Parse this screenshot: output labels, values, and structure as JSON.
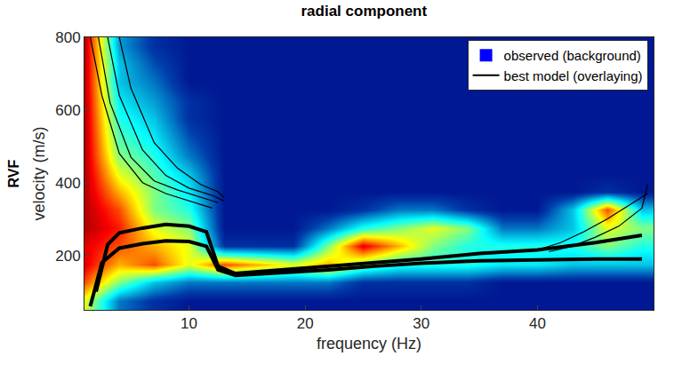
{
  "chart_data": {
    "type": "heatmap",
    "title": "radial component",
    "side_label": "RVF",
    "x_label": "frequency (Hz)",
    "y_label": "velocity (m/s)",
    "xlim": [
      1,
      50
    ],
    "ylim": [
      50,
      800
    ],
    "xticks": [
      10,
      20,
      30,
      40
    ],
    "yticks": [
      200,
      400,
      600,
      800
    ],
    "legend": "top right",
    "heatmap": {
      "name": "observed (background)",
      "color": "#0000ff",
      "x": [
        1,
        4,
        7,
        10,
        13,
        16,
        19,
        22,
        25,
        28,
        31,
        34,
        37,
        40,
        43,
        46,
        49
      ],
      "y": [
        75,
        125,
        175,
        225,
        275,
        325,
        375,
        425,
        475,
        525,
        575,
        625,
        675,
        725,
        775
      ],
      "z": [
        [
          0.6,
          0.2,
          0.1,
          0.05,
          0.05,
          0.05,
          0.05,
          0.05,
          0.05,
          0.05,
          0.05,
          0.05,
          0.05,
          0.05,
          0.05,
          0.05,
          0.05
        ],
        [
          0.8,
          0.5,
          0.3,
          0.2,
          0.2,
          0.2,
          0.2,
          0.2,
          0.1,
          0.1,
          0.1,
          0.1,
          0.05,
          0.05,
          0.05,
          0.05,
          0.05
        ],
        [
          0.9,
          0.7,
          0.8,
          0.6,
          0.8,
          0.7,
          0.6,
          0.7,
          0.5,
          0.4,
          0.4,
          0.4,
          0.35,
          0.35,
          0.3,
          0.3,
          0.3
        ],
        [
          0.9,
          0.8,
          0.7,
          0.6,
          0.1,
          0.1,
          0.1,
          0.5,
          0.9,
          0.7,
          0.5,
          0.4,
          0.4,
          0.4,
          0.4,
          0.5,
          0.4
        ],
        [
          0.95,
          0.85,
          0.6,
          0.5,
          0.05,
          0.05,
          0.05,
          0.2,
          0.4,
          0.5,
          0.6,
          0.5,
          0.2,
          0.2,
          0.3,
          0.6,
          0.5
        ],
        [
          0.95,
          0.8,
          0.5,
          0.4,
          0.05,
          0.05,
          0.05,
          0.05,
          0.1,
          0.2,
          0.2,
          0.1,
          0.05,
          0.05,
          0.3,
          0.8,
          0.3
        ],
        [
          0.95,
          0.7,
          0.5,
          0.35,
          0.05,
          0.05,
          0.05,
          0.05,
          0.05,
          0.05,
          0.05,
          0.05,
          0.05,
          0.05,
          0.05,
          0.1,
          0.05
        ],
        [
          0.95,
          0.6,
          0.45,
          0.3,
          0.05,
          0.05,
          0.05,
          0.05,
          0.05,
          0.05,
          0.05,
          0.05,
          0.05,
          0.05,
          0.05,
          0.05,
          0.05
        ],
        [
          0.95,
          0.5,
          0.4,
          0.2,
          0.05,
          0.05,
          0.05,
          0.05,
          0.05,
          0.05,
          0.05,
          0.05,
          0.05,
          0.05,
          0.05,
          0.05,
          0.05
        ],
        [
          0.95,
          0.45,
          0.35,
          0.15,
          0.05,
          0.05,
          0.05,
          0.05,
          0.05,
          0.05,
          0.05,
          0.05,
          0.05,
          0.05,
          0.05,
          0.05,
          0.05
        ],
        [
          0.95,
          0.4,
          0.3,
          0.1,
          0.05,
          0.05,
          0.05,
          0.05,
          0.05,
          0.05,
          0.05,
          0.05,
          0.05,
          0.05,
          0.05,
          0.05,
          0.05
        ],
        [
          0.95,
          0.35,
          0.25,
          0.1,
          0.05,
          0.05,
          0.05,
          0.05,
          0.05,
          0.05,
          0.05,
          0.05,
          0.05,
          0.05,
          0.05,
          0.05,
          0.05
        ],
        [
          0.95,
          0.3,
          0.2,
          0.05,
          0.05,
          0.05,
          0.05,
          0.05,
          0.05,
          0.05,
          0.05,
          0.05,
          0.05,
          0.05,
          0.05,
          0.05,
          0.05
        ],
        [
          0.95,
          0.3,
          0.15,
          0.05,
          0.05,
          0.05,
          0.05,
          0.05,
          0.05,
          0.05,
          0.05,
          0.05,
          0.05,
          0.05,
          0.05,
          0.05,
          0.05
        ],
        [
          0.95,
          0.25,
          0.1,
          0.05,
          0.05,
          0.05,
          0.05,
          0.05,
          0.05,
          0.05,
          0.05,
          0.05,
          0.05,
          0.05,
          0.05,
          0.05,
          0.05
        ]
      ],
      "zlim": [
        0,
        1
      ]
    },
    "series": [
      {
        "name": "best model (overlaying)",
        "color": "#000000",
        "type": "line",
        "curves": [
          {
            "x": [
              1.5,
              2.5,
              4,
              6,
              8,
              10,
              11.5,
              12.5,
              14,
              18,
              22,
              26,
              30,
              35,
              40,
              45,
              49
            ],
            "values": [
              60,
              180,
              220,
              232,
              240,
              238,
              225,
              160,
              145,
              152,
              160,
              170,
              178,
              185,
              188,
              190,
              190
            ]
          },
          {
            "x": [
              2,
              3,
              4,
              6,
              8,
              10,
              11.5,
              12.5,
              14,
              18,
              22,
              26,
              30,
              35,
              40,
              45,
              49
            ],
            "values": [
              100,
              230,
              262,
              275,
              285,
              280,
              265,
              170,
              150,
              160,
              170,
              180,
              190,
              205,
              215,
              235,
              255
            ]
          },
          {
            "x": [
              1.5,
              2.5,
              4,
              6,
              8,
              10,
              12
            ],
            "values": [
              800,
              640,
              480,
              400,
              370,
              350,
              330
            ]
          },
          {
            "x": [
              2.2,
              3.2,
              5,
              7,
              9,
              11,
              12.5
            ],
            "values": [
              800,
              620,
              470,
              405,
              380,
              360,
              345
            ]
          },
          {
            "x": [
              3,
              4,
              6,
              8,
              10,
              12,
              13
            ],
            "values": [
              800,
              640,
              490,
              420,
              385,
              365,
              350
            ]
          },
          {
            "x": [
              4,
              5,
              7,
              9,
              11,
              12.5,
              13
            ],
            "values": [
              800,
              660,
              510,
              440,
              395,
              375,
              360
            ]
          },
          {
            "x": [
              40,
              42,
              44,
              46,
              48,
              49.5
            ],
            "values": [
              215,
              235,
              265,
              300,
              340,
              370
            ]
          },
          {
            "x": [
              41,
              43,
              45,
              47,
              49,
              49.5
            ],
            "values": [
              210,
              225,
              250,
              280,
              330,
              395
            ]
          }
        ]
      }
    ]
  }
}
